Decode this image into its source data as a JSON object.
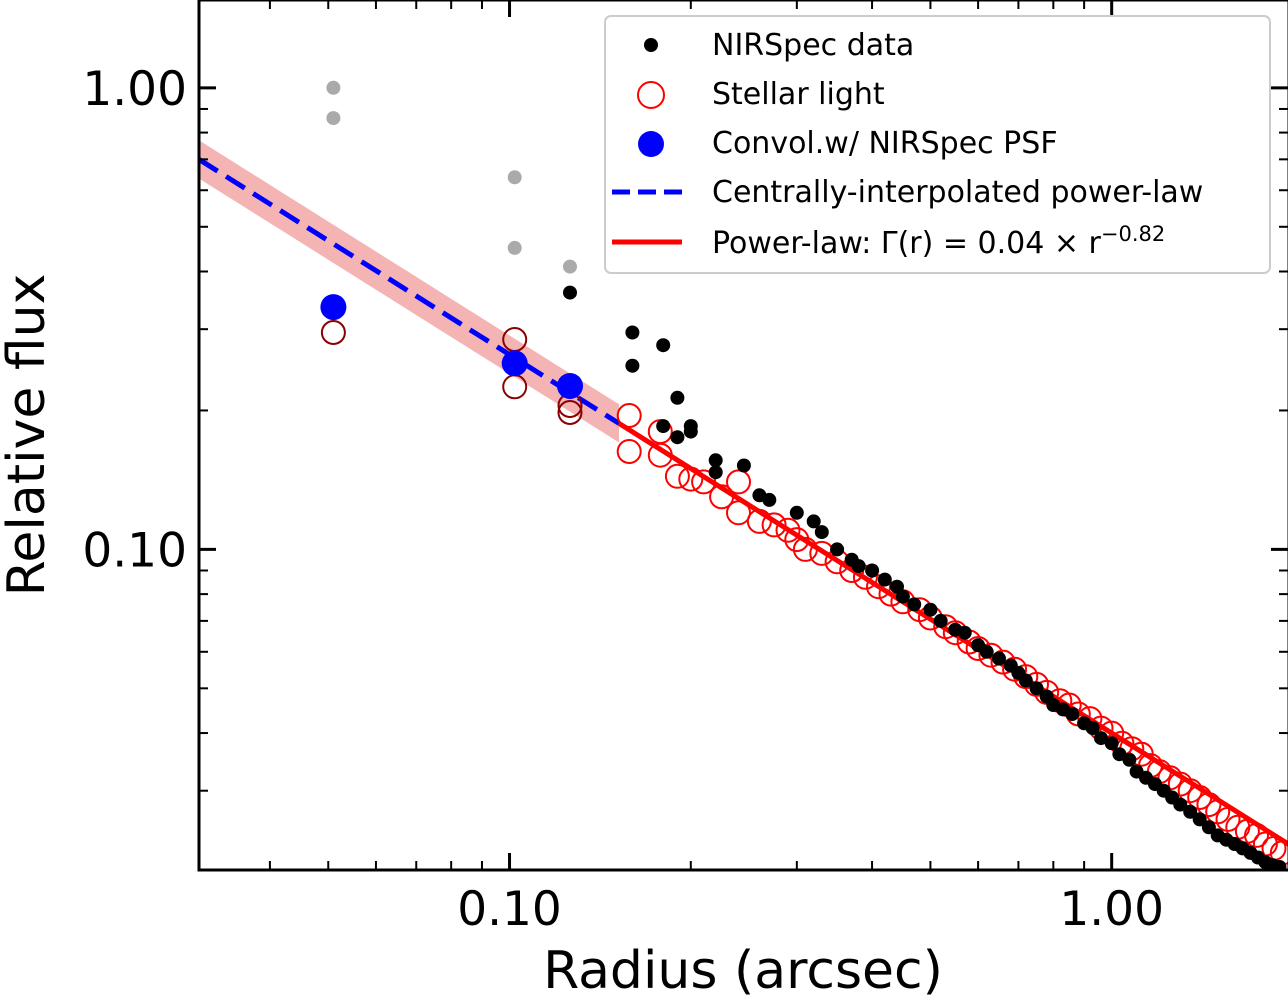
{
  "chart_data": {
    "type": "scatter",
    "title": "",
    "xlabel": "Radius (arcsec)",
    "ylabel": "Relative flux",
    "xscale": "log",
    "yscale": "log",
    "xlim": [
      0.0305,
      1.97
    ],
    "ylim": [
      0.0202,
      1.55
    ],
    "x_ticks": [
      {
        "value": 0.1,
        "label": "0.10"
      },
      {
        "value": 1.0,
        "label": "1.00"
      }
    ],
    "y_ticks": [
      {
        "value": 0.1,
        "label": "0.10"
      },
      {
        "value": 1.0,
        "label": "1.00"
      }
    ],
    "legend": {
      "position": "top-right",
      "entries": [
        {
          "key": "data",
          "label": "NIRSpec data"
        },
        {
          "key": "stellar",
          "label": "Stellar light"
        },
        {
          "key": "convol",
          "label": "Convol.w/ NIRSpec PSF"
        },
        {
          "key": "interp",
          "label": "Centrally-interpolated power-law"
        },
        {
          "key": "powerlaw",
          "label": "Power-law: Γ(r) = 0.04 × r",
          "superscript": "−0.82"
        }
      ]
    },
    "colors": {
      "data": "#000000",
      "data_excluded": "#aaaaaa",
      "stellar": "#ff0000",
      "stellar_inner": "#8b0000",
      "convol": "#0000ff",
      "interp": "#0000ff",
      "powerlaw": "#ff0000",
      "band": "#f4b4b4"
    },
    "series": [
      {
        "name": "NIRSpec data (excluded, inner)",
        "x": [
          0.051,
          0.051,
          0.102,
          0.102,
          0.126
        ],
        "y": [
          1.0,
          0.86,
          0.64,
          0.45,
          0.41
        ]
      },
      {
        "name": "NIRSpec data",
        "x": [
          0.126,
          0.16,
          0.16,
          0.18,
          0.18,
          0.19,
          0.19,
          0.2,
          0.2,
          0.22,
          0.22,
          0.245,
          0.26,
          0.27,
          0.3,
          0.32,
          0.33,
          0.35,
          0.37,
          0.38,
          0.4,
          0.42,
          0.44,
          0.45,
          0.47,
          0.5,
          0.52,
          0.55,
          0.57,
          0.6,
          0.62,
          0.65,
          0.68,
          0.7,
          0.72,
          0.75,
          0.78,
          0.8,
          0.83,
          0.86,
          0.9,
          0.93,
          0.96,
          1.0,
          1.03,
          1.07,
          1.1,
          1.14,
          1.18,
          1.22,
          1.26,
          1.3,
          1.35,
          1.4,
          1.45,
          1.5,
          1.55,
          1.6,
          1.65,
          1.7,
          1.75,
          1.8,
          1.85,
          1.9
        ],
        "y": [
          0.36,
          0.295,
          0.25,
          0.277,
          0.185,
          0.213,
          0.175,
          0.18,
          0.185,
          0.156,
          0.147,
          0.152,
          0.131,
          0.128,
          0.12,
          0.115,
          0.109,
          0.1,
          0.095,
          0.092,
          0.09,
          0.086,
          0.083,
          0.079,
          0.076,
          0.074,
          0.07,
          0.067,
          0.066,
          0.062,
          0.06,
          0.058,
          0.056,
          0.054,
          0.052,
          0.05,
          0.048,
          0.046,
          0.045,
          0.044,
          0.042,
          0.041,
          0.039,
          0.038,
          0.036,
          0.035,
          0.033,
          0.032,
          0.031,
          0.03,
          0.029,
          0.028,
          0.027,
          0.026,
          0.025,
          0.024,
          0.0235,
          0.023,
          0.0225,
          0.022,
          0.0215,
          0.021,
          0.0207,
          0.0205
        ]
      },
      {
        "name": "Stellar light (inner)",
        "x": [
          0.051,
          0.102,
          0.102,
          0.126,
          0.126
        ],
        "y": [
          0.295,
          0.285,
          0.225,
          0.205,
          0.198
        ]
      },
      {
        "name": "Stellar light",
        "x": [
          0.158,
          0.158,
          0.178,
          0.178,
          0.19,
          0.2,
          0.21,
          0.225,
          0.24,
          0.24,
          0.26,
          0.275,
          0.29,
          0.3,
          0.31,
          0.33,
          0.35,
          0.37,
          0.39,
          0.41,
          0.43,
          0.45,
          0.48,
          0.5,
          0.53,
          0.55,
          0.58,
          0.6,
          0.63,
          0.66,
          0.69,
          0.72,
          0.75,
          0.78,
          0.82,
          0.85,
          0.88,
          0.92,
          0.96,
          1.0,
          1.04,
          1.08,
          1.12,
          1.16,
          1.2,
          1.25,
          1.3,
          1.35,
          1.4,
          1.45,
          1.5,
          1.56,
          1.62,
          1.68,
          1.74,
          1.8,
          1.86,
          1.92
        ],
        "y": [
          0.195,
          0.163,
          0.18,
          0.16,
          0.144,
          0.142,
          0.14,
          0.13,
          0.14,
          0.12,
          0.115,
          0.113,
          0.11,
          0.105,
          0.1,
          0.098,
          0.094,
          0.09,
          0.087,
          0.083,
          0.08,
          0.077,
          0.074,
          0.071,
          0.068,
          0.066,
          0.063,
          0.061,
          0.059,
          0.057,
          0.055,
          0.053,
          0.051,
          0.049,
          0.047,
          0.046,
          0.044,
          0.043,
          0.041,
          0.04,
          0.038,
          0.037,
          0.036,
          0.034,
          0.033,
          0.032,
          0.031,
          0.03,
          0.029,
          0.028,
          0.027,
          0.026,
          0.025,
          0.0245,
          0.024,
          0.023,
          0.0225,
          0.022
        ]
      },
      {
        "name": "Convol.w/ NIRSpec PSF",
        "x": [
          0.051,
          0.102,
          0.126
        ],
        "y": [
          0.335,
          0.253,
          0.226
        ]
      }
    ],
    "lines": [
      {
        "name": "Centrally-interpolated power-law",
        "style": "dashed",
        "x_range": [
          0.0305,
          0.152
        ],
        "amplitude": 0.04,
        "exponent": -0.82
      },
      {
        "name": "Power-law",
        "style": "solid",
        "x_range": [
          0.152,
          1.97
        ],
        "amplitude": 0.04,
        "exponent": -0.82
      },
      {
        "name": "Uncertainty band",
        "style": "band",
        "x_range": [
          0.0305,
          0.152
        ],
        "amplitude": 0.04,
        "exponent": -0.82,
        "factor": 1.1
      }
    ]
  }
}
